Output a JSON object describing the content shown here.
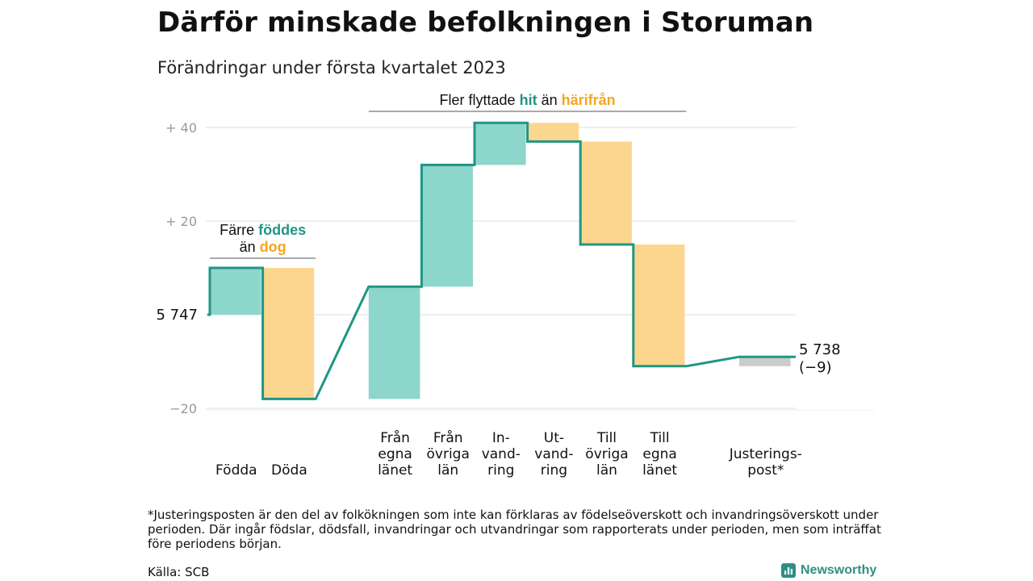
{
  "title": "Därför minskade befolkningen i Storuman",
  "subtitle": "Förändringar under första kvartalet 2023",
  "footnote": "*Justeringsposten är den del av folkökningen som inte kan förklaras av födelseöverskott och invandringsöverskott under perioden. Där ingår födslar, dödsfall, invandringar och utvandringar som rapporterats under perioden, men som inträffat före periodens början.",
  "source": "Källa: SCB",
  "brand": "Newsworthy",
  "colors": {
    "positive": "#8dd6cb",
    "negative": "#fcd68f",
    "adjustment": "#cccccc",
    "line": "#1f9684",
    "teal_text": "#1f9684",
    "orange_text": "#f5a623",
    "grid": "#dddddd",
    "tick_text": "#999999"
  },
  "chart_data": {
    "type": "waterfall",
    "start": {
      "label": "5 747",
      "value": 0
    },
    "end": {
      "label": "5 738",
      "change_label": "(−9)",
      "value": -9
    },
    "yticks": [
      {
        "value": 40,
        "label": "+ 40"
      },
      {
        "value": 20,
        "label": "+ 20"
      },
      {
        "value": -20,
        "label": "−20"
      }
    ],
    "ylim": [
      -21,
      41
    ],
    "grid": true,
    "gridlines": [
      40,
      20,
      0,
      -20
    ],
    "items": [
      {
        "lines": [
          "Födda"
        ],
        "value": 10,
        "kind": "positive",
        "gap_before": 0
      },
      {
        "lines": [
          "Döda"
        ],
        "value": -28,
        "kind": "negative",
        "gap_before": 0
      },
      {
        "lines": [
          "Från",
          "egna",
          "länet"
        ],
        "value": 24,
        "kind": "positive",
        "gap_before": 1
      },
      {
        "lines": [
          "Från",
          "övriga",
          "län"
        ],
        "value": 26,
        "kind": "positive",
        "gap_before": 0
      },
      {
        "lines": [
          "In-",
          "vand-",
          "ring"
        ],
        "value": 9,
        "kind": "positive",
        "gap_before": 0
      },
      {
        "lines": [
          "Ut-",
          "vand-",
          "ring"
        ],
        "value": -4,
        "kind": "negative",
        "gap_before": 0
      },
      {
        "lines": [
          "Till",
          "övriga",
          "län"
        ],
        "value": -22,
        "kind": "negative",
        "gap_before": 0
      },
      {
        "lines": [
          "Till",
          "egna",
          "länet"
        ],
        "value": -26,
        "kind": "negative",
        "gap_before": 0
      },
      {
        "lines": [
          "Justerings-",
          "post*"
        ],
        "value": 2,
        "kind": "adjustment",
        "gap_before": 1
      }
    ],
    "annotations": [
      {
        "parts": [
          {
            "line": 0,
            "text": "Färre ",
            "color": "default"
          },
          {
            "line": 0,
            "text": "föddes",
            "color": "teal"
          },
          {
            "line": 1,
            "text": "än ",
            "color": "default"
          },
          {
            "line": 1,
            "text": "dog",
            "color": "orange"
          }
        ],
        "from_item": 0,
        "to_item": 1
      },
      {
        "parts": [
          {
            "line": 0,
            "text": "Fler flyttade ",
            "color": "default"
          },
          {
            "line": 0,
            "text": "hit",
            "color": "teal"
          },
          {
            "line": 0,
            "text": " än ",
            "color": "default"
          },
          {
            "line": 0,
            "text": "härifrån",
            "color": "orange"
          }
        ],
        "from_item": 2,
        "to_item": 7
      }
    ]
  }
}
